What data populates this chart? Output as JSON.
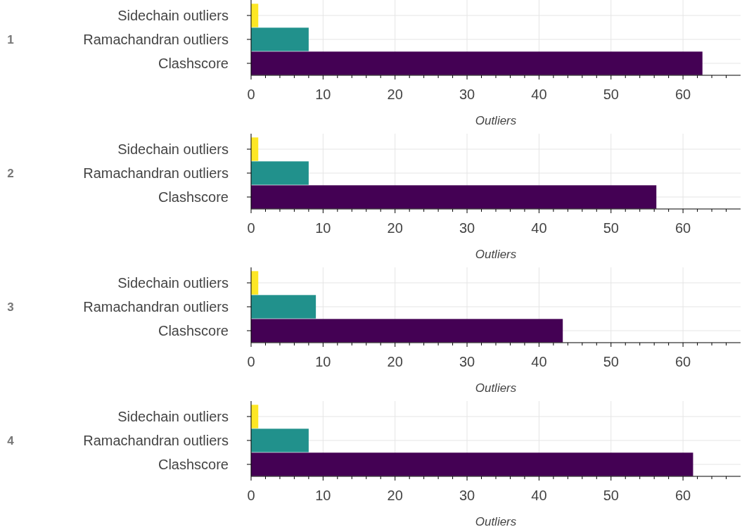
{
  "chart_data": [
    {
      "type": "bar",
      "orientation": "horizontal",
      "annotations": [
        "1"
      ],
      "xlabel": "Outliers",
      "categories": [
        "Sidechain outliers",
        "Ramachandran outliers",
        "Clashscore"
      ],
      "values": [
        1.0,
        8.0,
        62.7
      ],
      "colors": [
        "#fde725",
        "#21918c",
        "#440154"
      ],
      "xlim": [
        0,
        68
      ],
      "xticks": [
        0,
        {
          "value": 2,
          "label": null
        },
        {
          "value": 4,
          "label": null
        },
        {
          "value": 6,
          "label": null
        },
        {
          "value": 8,
          "label": null
        },
        10,
        {
          "value": 12,
          "label": null
        },
        {
          "value": 14,
          "label": null
        },
        {
          "value": 16,
          "label": null
        },
        {
          "value": 18,
          "label": null
        },
        20,
        {
          "value": 22,
          "label": null
        },
        {
          "value": 24,
          "label": null
        },
        {
          "value": 26,
          "label": null
        },
        {
          "value": 28,
          "label": null
        },
        30,
        {
          "value": 32,
          "label": null
        },
        {
          "value": 34,
          "label": null
        },
        {
          "value": 36,
          "label": null
        },
        {
          "value": 38,
          "label": null
        },
        40,
        {
          "value": 42,
          "label": null
        },
        {
          "value": 44,
          "label": null
        },
        {
          "value": 46,
          "label": null
        },
        {
          "value": 48,
          "label": null
        },
        50,
        {
          "value": 52,
          "label": null
        },
        {
          "value": 54,
          "label": null
        },
        {
          "value": 56,
          "label": null
        },
        {
          "value": 58,
          "label": null
        },
        60,
        {
          "value": 62,
          "label": null
        },
        {
          "value": 64,
          "label": null
        },
        {
          "value": 66,
          "label": null
        }
      ],
      "grid": true
    },
    {
      "type": "bar",
      "orientation": "horizontal",
      "annotations": [
        "2"
      ],
      "xlabel": "Outliers",
      "categories": [
        "Sidechain outliers",
        "Ramachandran outliers",
        "Clashscore"
      ],
      "values": [
        1.0,
        8.0,
        56.3
      ],
      "colors": [
        "#fde725",
        "#21918c",
        "#440154"
      ],
      "xlim": [
        0,
        68
      ],
      "xticks": [
        0,
        {
          "value": 2,
          "label": null
        },
        {
          "value": 4,
          "label": null
        },
        {
          "value": 6,
          "label": null
        },
        {
          "value": 8,
          "label": null
        },
        10,
        {
          "value": 12,
          "label": null
        },
        {
          "value": 14,
          "label": null
        },
        {
          "value": 16,
          "label": null
        },
        {
          "value": 18,
          "label": null
        },
        20,
        {
          "value": 22,
          "label": null
        },
        {
          "value": 24,
          "label": null
        },
        {
          "value": 26,
          "label": null
        },
        {
          "value": 28,
          "label": null
        },
        30,
        {
          "value": 32,
          "label": null
        },
        {
          "value": 34,
          "label": null
        },
        {
          "value": 36,
          "label": null
        },
        {
          "value": 38,
          "label": null
        },
        40,
        {
          "value": 42,
          "label": null
        },
        {
          "value": 44,
          "label": null
        },
        {
          "value": 46,
          "label": null
        },
        {
          "value": 48,
          "label": null
        },
        50,
        {
          "value": 52,
          "label": null
        },
        {
          "value": 54,
          "label": null
        },
        {
          "value": 56,
          "label": null
        },
        {
          "value": 58,
          "label": null
        },
        60,
        {
          "value": 62,
          "label": null
        },
        {
          "value": 64,
          "label": null
        },
        {
          "value": 66,
          "label": null
        }
      ],
      "grid": true
    },
    {
      "type": "bar",
      "orientation": "horizontal",
      "annotations": [
        "3"
      ],
      "xlabel": "Outliers",
      "categories": [
        "Sidechain outliers",
        "Ramachandran outliers",
        "Clashscore"
      ],
      "values": [
        1.0,
        9.0,
        43.3
      ],
      "colors": [
        "#fde725",
        "#21918c",
        "#440154"
      ],
      "xlim": [
        0,
        68
      ],
      "xticks": [
        0,
        {
          "value": 2,
          "label": null
        },
        {
          "value": 4,
          "label": null
        },
        {
          "value": 6,
          "label": null
        },
        {
          "value": 8,
          "label": null
        },
        10,
        {
          "value": 12,
          "label": null
        },
        {
          "value": 14,
          "label": null
        },
        {
          "value": 16,
          "label": null
        },
        {
          "value": 18,
          "label": null
        },
        20,
        {
          "value": 22,
          "label": null
        },
        {
          "value": 24,
          "label": null
        },
        {
          "value": 26,
          "label": null
        },
        {
          "value": 28,
          "label": null
        },
        30,
        {
          "value": 32,
          "label": null
        },
        {
          "value": 34,
          "label": null
        },
        {
          "value": 36,
          "label": null
        },
        {
          "value": 38,
          "label": null
        },
        40,
        {
          "value": 42,
          "label": null
        },
        {
          "value": 44,
          "label": null
        },
        {
          "value": 46,
          "label": null
        },
        {
          "value": 48,
          "label": null
        },
        50,
        {
          "value": 52,
          "label": null
        },
        {
          "value": 54,
          "label": null
        },
        {
          "value": 56,
          "label": null
        },
        {
          "value": 58,
          "label": null
        },
        60,
        {
          "value": 62,
          "label": null
        },
        {
          "value": 64,
          "label": null
        },
        {
          "value": 66,
          "label": null
        }
      ],
      "grid": true
    },
    {
      "type": "bar",
      "orientation": "horizontal",
      "annotations": [
        "4"
      ],
      "xlabel": "Outliers",
      "categories": [
        "Sidechain outliers",
        "Ramachandran outliers",
        "Clashscore"
      ],
      "values": [
        1.0,
        8.0,
        61.4
      ],
      "colors": [
        "#fde725",
        "#21918c",
        "#440154"
      ],
      "xlim": [
        0,
        68
      ],
      "xticks": [
        0,
        {
          "value": 2,
          "label": null
        },
        {
          "value": 4,
          "label": null
        },
        {
          "value": 6,
          "label": null
        },
        {
          "value": 8,
          "label": null
        },
        10,
        {
          "value": 12,
          "label": null
        },
        {
          "value": 14,
          "label": null
        },
        {
          "value": 16,
          "label": null
        },
        {
          "value": 18,
          "label": null
        },
        20,
        {
          "value": 22,
          "label": null
        },
        {
          "value": 24,
          "label": null
        },
        {
          "value": 26,
          "label": null
        },
        {
          "value": 28,
          "label": null
        },
        30,
        {
          "value": 32,
          "label": null
        },
        {
          "value": 34,
          "label": null
        },
        {
          "value": 36,
          "label": null
        },
        {
          "value": 38,
          "label": null
        },
        40,
        {
          "value": 42,
          "label": null
        },
        {
          "value": 44,
          "label": null
        },
        {
          "value": 46,
          "label": null
        },
        {
          "value": 48,
          "label": null
        },
        50,
        {
          "value": 52,
          "label": null
        },
        {
          "value": 54,
          "label": null
        },
        {
          "value": 56,
          "label": null
        },
        {
          "value": 58,
          "label": null
        },
        60,
        {
          "value": 62,
          "label": null
        },
        {
          "value": 64,
          "label": null
        },
        {
          "value": 66,
          "label": null
        }
      ],
      "grid": true
    }
  ]
}
